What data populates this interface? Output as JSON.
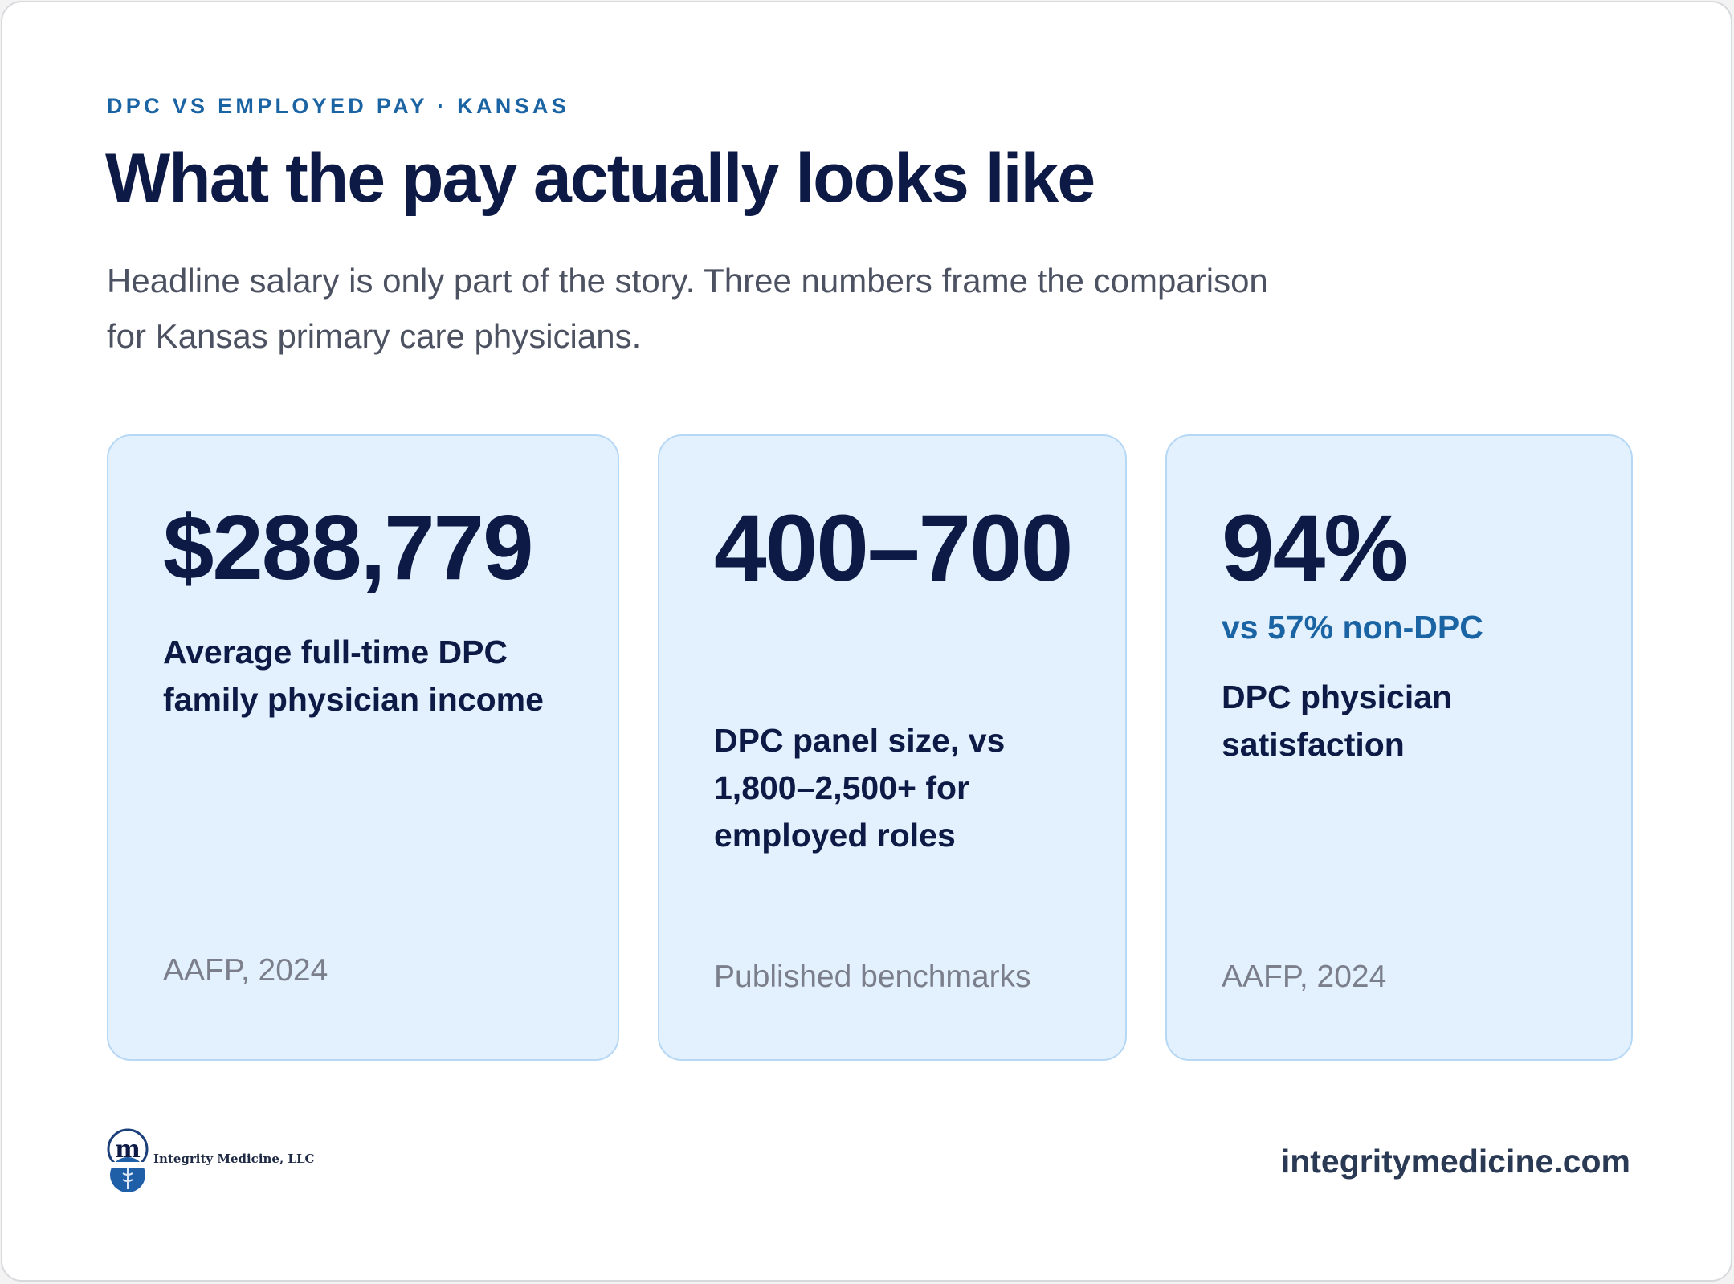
{
  "header": {
    "eyebrow": "DPC VS EMPLOYED PAY · KANSAS",
    "title": "What the pay actually looks like",
    "subtitle": "Headline salary is only part of the story. Three numbers frame the comparison for Kansas primary care physicians."
  },
  "stats": [
    {
      "value": "$288,779",
      "description": "Average full-time DPC family physician income",
      "source": "AAFP, 2024"
    },
    {
      "value": "400–700",
      "description": "DPC panel size, vs 1,800–2,500+ for employed roles",
      "source": "Published benchmarks"
    },
    {
      "value": "94%",
      "comparison": "vs 57% non-DPC",
      "description": "DPC physician satisfaction",
      "source": "AAFP, 2024"
    }
  ],
  "footer": {
    "logo_icon": "integrity-medicine-logo-icon",
    "logo_text": "Integrity Medicine, LLC",
    "url": "integritymedicine.com"
  },
  "colors": {
    "navy": "#0c1a45",
    "accent_blue": "#1b64a4",
    "card_bg": "#e3f0fd",
    "card_border": "#b6d8f5"
  }
}
